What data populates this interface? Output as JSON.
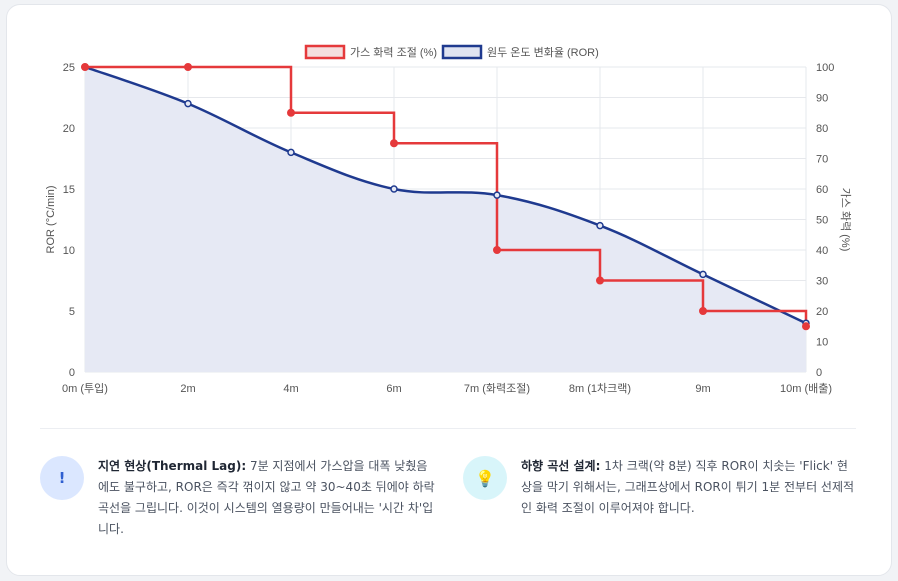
{
  "chart_data": {
    "type": "line",
    "categories": [
      "0m (투입)",
      "2m",
      "4m",
      "6m",
      "7m (화력조절)",
      "8m (1차크랙)",
      "9m",
      "10m (배출)"
    ],
    "series": [
      {
        "name": "가스 화력 조절 (%)",
        "axis": "right",
        "style": "stepped",
        "values": [
          100,
          100,
          85,
          75,
          40,
          30,
          20,
          15
        ],
        "color": "#e5393b"
      },
      {
        "name": "원두 온도 변화율 (ROR)",
        "axis": "left",
        "style": "smooth-filled",
        "values": [
          25,
          22,
          18,
          15,
          14.5,
          12,
          8,
          4
        ],
        "color": "#1f3a8f",
        "fill": "#e6e9f4"
      }
    ],
    "ylabel": "ROR (°C/min)",
    "y2label": "가스 화력 (%)",
    "ylim": [
      0,
      25
    ],
    "y2lim": [
      0,
      100
    ],
    "yticks": [
      0,
      5,
      10,
      15,
      20,
      25
    ],
    "y2ticks": [
      0,
      10,
      20,
      30,
      40,
      50,
      60,
      70,
      80,
      90,
      100
    ],
    "legend": "top-center",
    "grid": true
  },
  "notes": [
    {
      "icon": "!",
      "title": "지연 현상(Thermal Lag):",
      "body": " 7분 지점에서 가스압을 대폭 낮췄음에도 불구하고, ROR은 즉각 꺾이지 않고 약 30~40초 뒤에야 하락 곡선을 그립니다. 이것이 시스템의 열용량이 만들어내는 '시간 차'입니다."
    },
    {
      "icon": "💡",
      "title": "하향 곡선 설계:",
      "body": " 1차 크랙(약 8분) 직후 ROR이 치솟는 'Flick' 현상을 막기 위해서는, 그래프상에서 ROR이 튀기 1분 전부터 선제적인 화력 조절이 이루어져야 합니다."
    }
  ]
}
